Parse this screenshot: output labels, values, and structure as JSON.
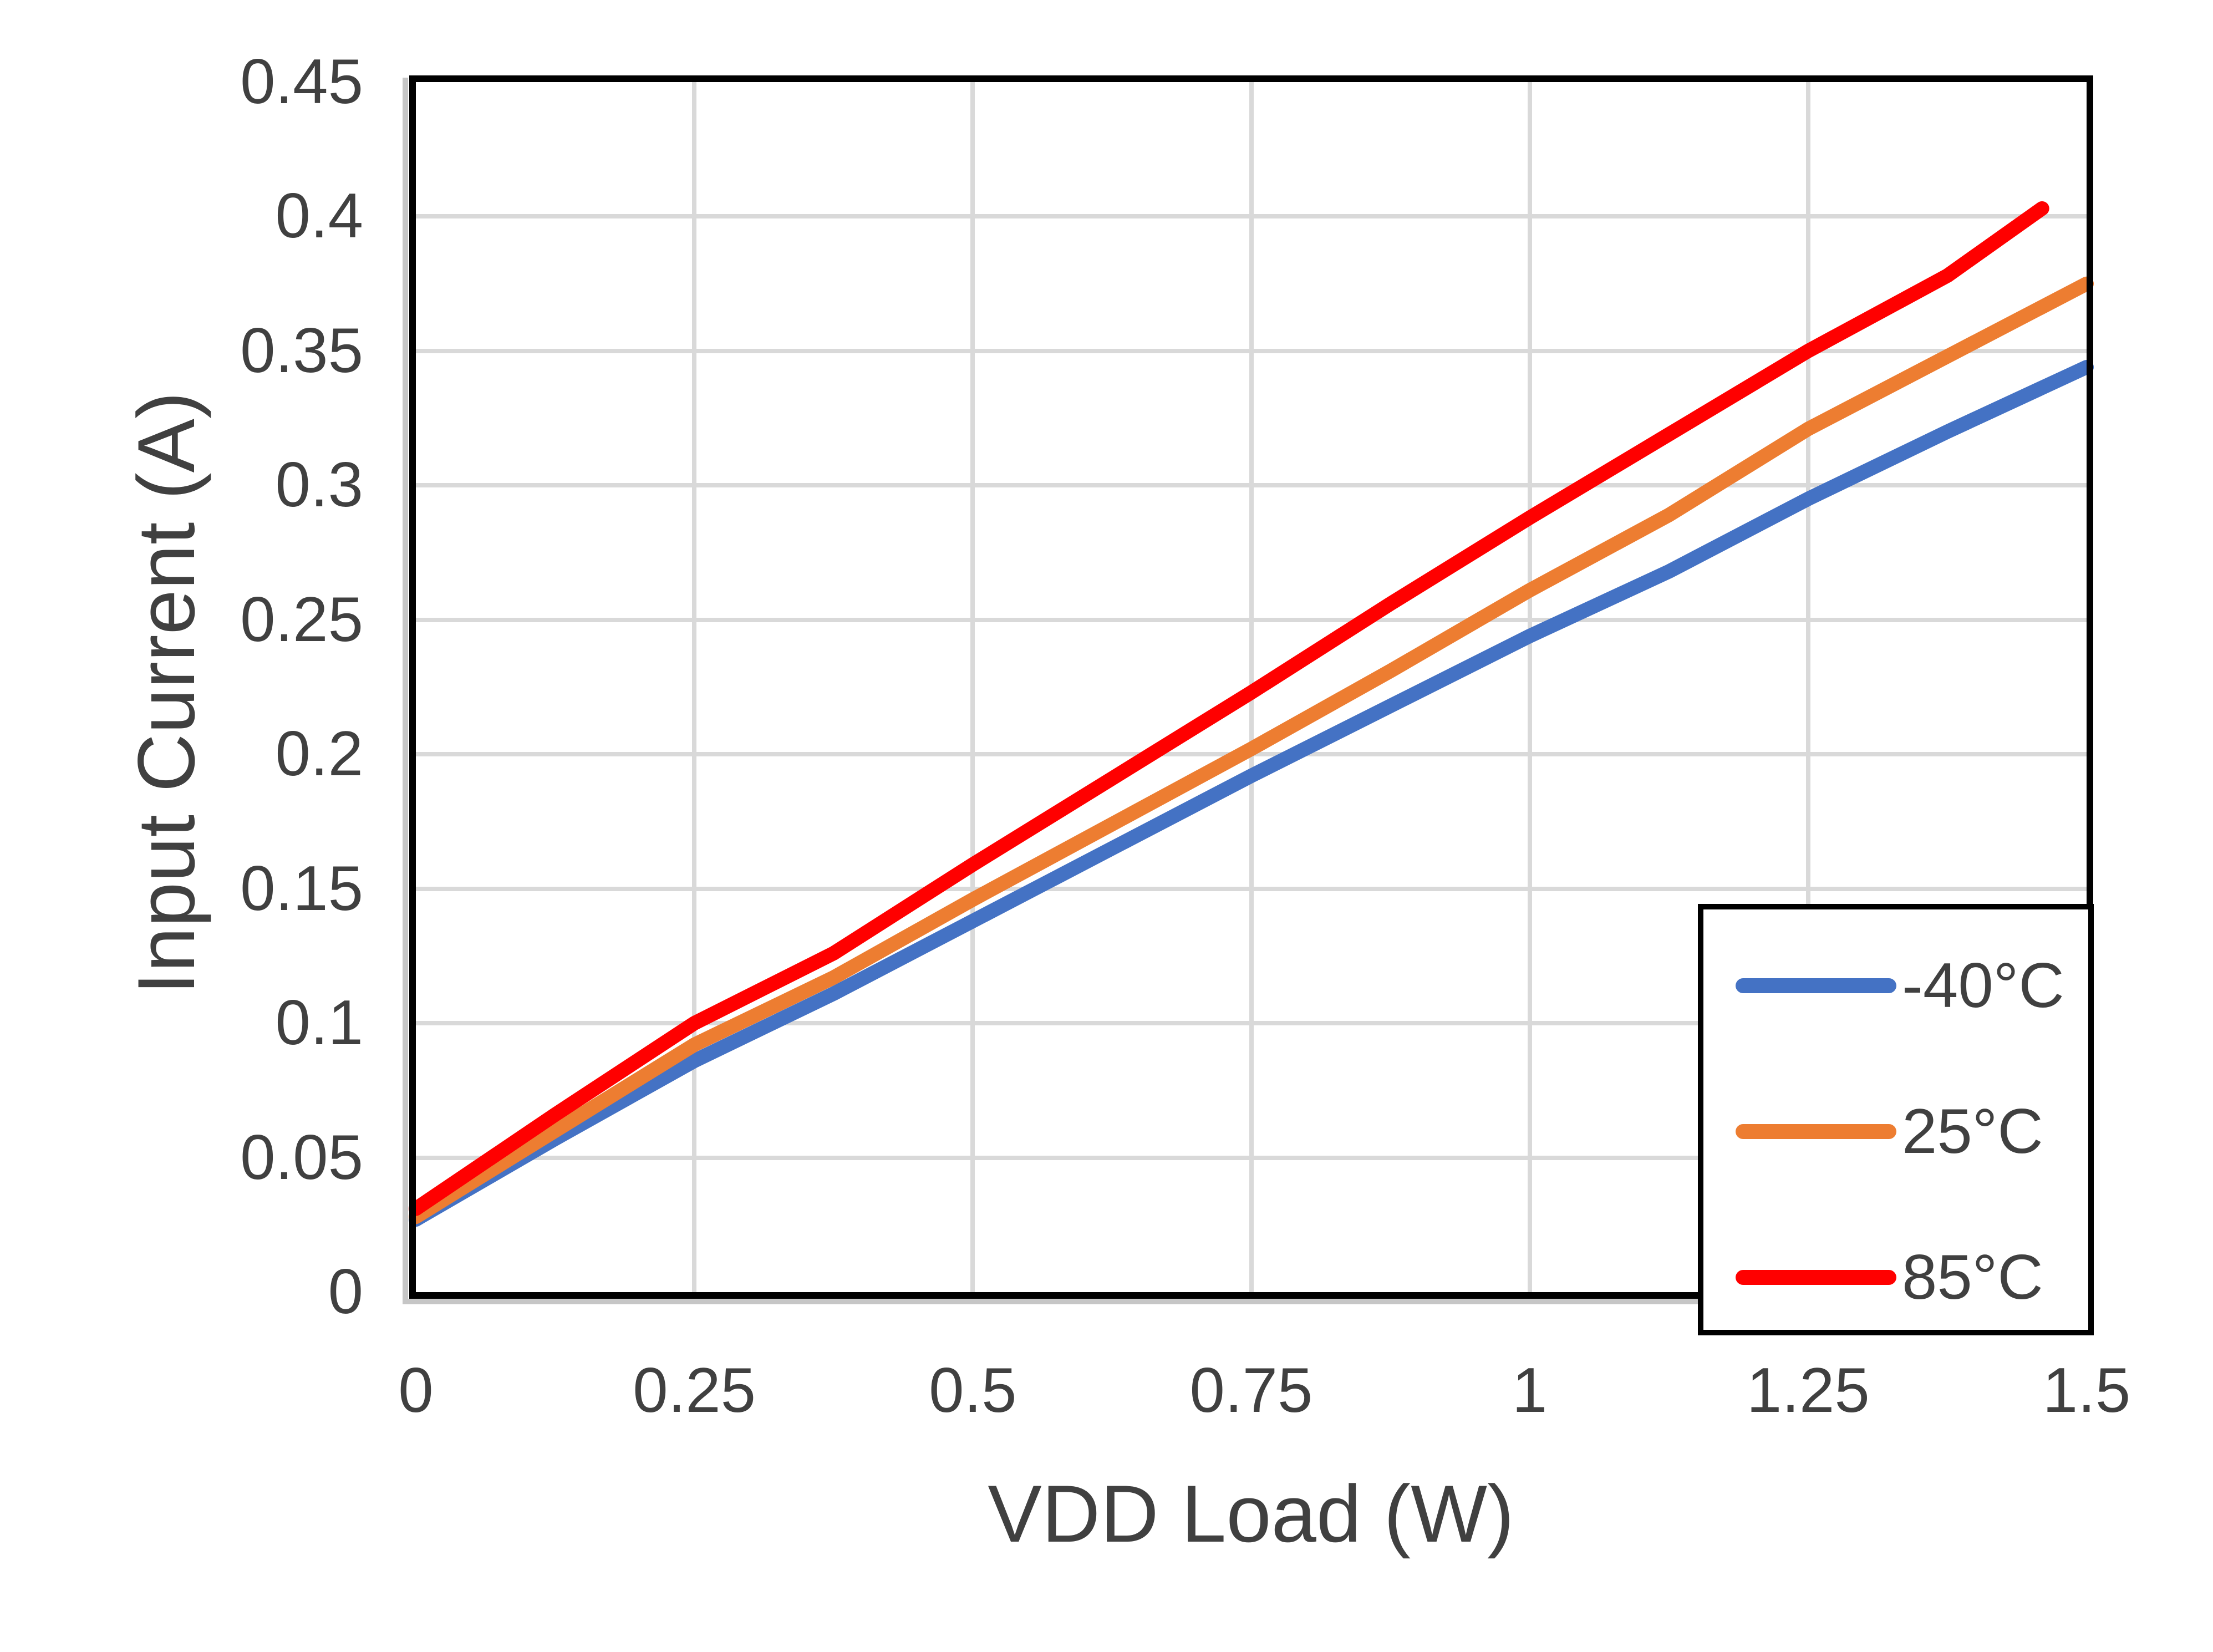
{
  "colors": {
    "background": "#FFFFFF",
    "grid": "#D9D9D9",
    "axis_text": "#404040",
    "plot_border": "#000000",
    "legend_border": "#000000",
    "series_blue": "#4472C4",
    "series_orange": "#ED7D31",
    "series_red": "#FF0000"
  },
  "chart_data": {
    "type": "line",
    "title": "",
    "xlabel": "VDD Load (W)",
    "ylabel": "Input Current (A)",
    "xlim": [
      0,
      1.5
    ],
    "ylim": [
      0,
      0.45
    ],
    "x_ticks": [
      "0",
      "0.25",
      "0.5",
      "0.75",
      "1",
      "1.25",
      "1.5"
    ],
    "y_ticks": [
      "0",
      "0.05",
      "0.1",
      "0.15",
      "0.2",
      "0.25",
      "0.3",
      "0.35",
      "0.4",
      "0.45"
    ],
    "grid": true,
    "legend_position": "inside-bottom-right",
    "series": [
      {
        "name": "-40°C",
        "color": "#4472C4",
        "points": [
          [
            0,
            0.027
          ],
          [
            0.125,
            0.057
          ],
          [
            0.25,
            0.086
          ],
          [
            0.375,
            0.111
          ],
          [
            0.5,
            0.138
          ],
          [
            0.625,
            0.165
          ],
          [
            0.75,
            0.192
          ],
          [
            0.875,
            0.218
          ],
          [
            1,
            0.244
          ],
          [
            1.125,
            0.268
          ],
          [
            1.25,
            0.295
          ],
          [
            1.375,
            0.32
          ],
          [
            1.5,
            0.344
          ]
        ]
      },
      {
        "name": "25°C",
        "color": "#ED7D31",
        "points": [
          [
            0,
            0.028
          ],
          [
            0.125,
            0.06
          ],
          [
            0.25,
            0.092
          ],
          [
            0.375,
            0.117
          ],
          [
            0.5,
            0.146
          ],
          [
            0.625,
            0.174
          ],
          [
            0.75,
            0.202
          ],
          [
            0.875,
            0.231
          ],
          [
            1,
            0.261
          ],
          [
            1.125,
            0.289
          ],
          [
            1.25,
            0.321
          ],
          [
            1.375,
            0.348
          ],
          [
            1.5,
            0.375
          ]
        ]
      },
      {
        "name": "85°C",
        "color": "#FF0000",
        "points": [
          [
            0,
            0.031
          ],
          [
            0.125,
            0.066
          ],
          [
            0.25,
            0.1
          ],
          [
            0.375,
            0.126
          ],
          [
            0.5,
            0.159
          ],
          [
            0.625,
            0.191
          ],
          [
            0.75,
            0.223
          ],
          [
            0.875,
            0.256
          ],
          [
            1,
            0.288
          ],
          [
            1.125,
            0.319
          ],
          [
            1.25,
            0.35
          ],
          [
            1.375,
            0.378
          ],
          [
            1.46,
            0.403
          ]
        ]
      }
    ]
  }
}
